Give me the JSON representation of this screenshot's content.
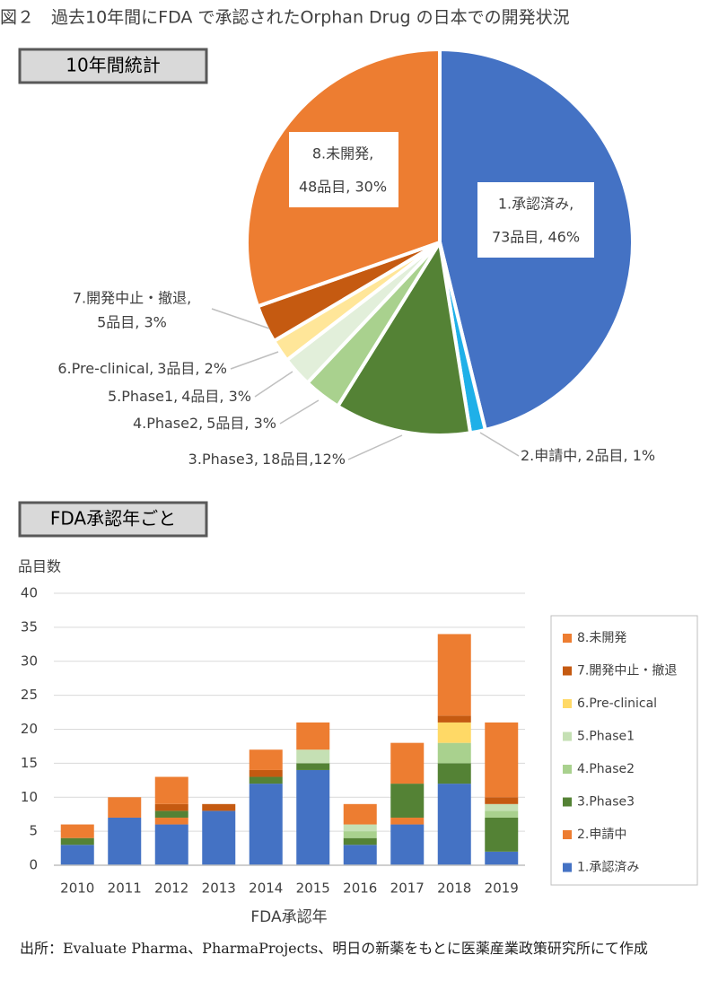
{
  "title": "図２　過去10年間にFDA で承認されたOrphan Drug の日本での開発状況",
  "chart_data": [
    {
      "type": "pie",
      "title": "10年間統計",
      "categories": [
        "1.承認済み,",
        "2.申請中,",
        "3.Phase3,",
        "4.Phase2,",
        "5.Phase1,",
        "6.Pre-clinical,",
        "7.開発中止・撤退,",
        "8.未開発,"
      ],
      "values": [
        73,
        2,
        18,
        5,
        4,
        3,
        5,
        48
      ],
      "value_labels": [
        "73品目, 46%",
        "2品目, 1%",
        "18品目,12%",
        "5品目, 3%",
        "4品目, 3%",
        "3品目, 2%",
        "5品目, 3%",
        "48品目, 30%"
      ],
      "colors": [
        "#4472c4",
        "#1fb0e8",
        "#548235",
        "#a9d18e",
        "#e2efda",
        "#ffe699",
        "#c55a11",
        "#ed7d31"
      ]
    },
    {
      "type": "bar",
      "stacked": true,
      "title": "FDA承認年ごと",
      "y_label": "品目数",
      "x_label": "FDA承認年",
      "categories": [
        "2010",
        "2011",
        "2012",
        "2013",
        "2014",
        "2015",
        "2016",
        "2017",
        "2018",
        "2019"
      ],
      "series": [
        {
          "name": "1.承認済み",
          "color": "#4472c4",
          "values": [
            3,
            7,
            6,
            8,
            12,
            14,
            3,
            6,
            12,
            2
          ]
        },
        {
          "name": "2.申請中",
          "color": "#ed7d31",
          "values": [
            0,
            0,
            1,
            0,
            0,
            0,
            0,
            1,
            0,
            0
          ]
        },
        {
          "name": "3.Phase3",
          "color": "#548235",
          "values": [
            1,
            0,
            1,
            0,
            1,
            1,
            1,
            5,
            3,
            5
          ]
        },
        {
          "name": "4.Phase2",
          "color": "#a9d18e",
          "values": [
            0,
            0,
            0,
            0,
            0,
            0,
            1,
            0,
            3,
            1
          ]
        },
        {
          "name": "5.Phase1",
          "color": "#c5e0b4",
          "values": [
            0,
            0,
            0,
            0,
            0,
            2,
            1,
            0,
            0,
            1
          ]
        },
        {
          "name": "6.Pre-clinical",
          "color": "#ffd966",
          "values": [
            0,
            0,
            0,
            0,
            0,
            0,
            0,
            0,
            3,
            0
          ]
        },
        {
          "name": "7.開発中止・撤退",
          "color": "#c55a11",
          "values": [
            0,
            0,
            1,
            1,
            1,
            0,
            0,
            0,
            1,
            1
          ]
        },
        {
          "name": "8.未開発",
          "color": "#ed7d31",
          "values": [
            2,
            3,
            4,
            0,
            3,
            4,
            3,
            6,
            12,
            11
          ]
        }
      ],
      "ylim": [
        0,
        40
      ],
      "yticks": [
        0,
        5,
        10,
        15,
        20,
        25,
        30,
        35,
        40
      ],
      "grid": true,
      "legend": "right"
    }
  ],
  "source": "出所：Evaluate Pharma、PharmaProjects、明日の新薬をもとに医薬産業政策研究所にて作成"
}
